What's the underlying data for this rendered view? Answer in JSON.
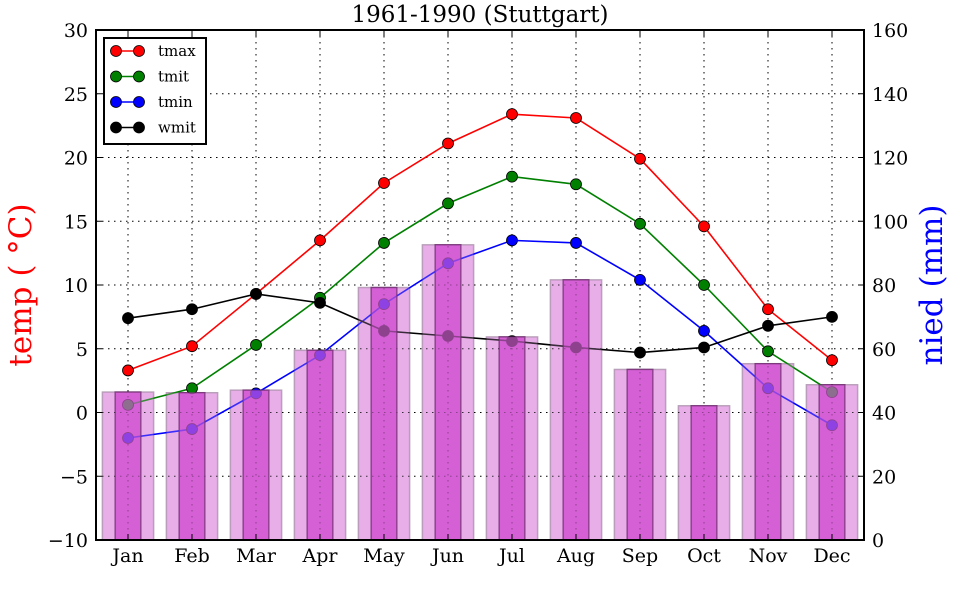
{
  "chart_data": {
    "type": "bar+line",
    "title": "1961-1990 (Stuttgart)",
    "xlabel": "",
    "ylabel_left": "temp ( °C)",
    "ylabel_left_color": "#ff0000",
    "ylabel_right": "nied (mm)",
    "ylabel_right_color": "#0000ff",
    "categories": [
      "Jan",
      "Feb",
      "Mar",
      "Apr",
      "May",
      "Jun",
      "Jul",
      "Aug",
      "Sep",
      "Oct",
      "Nov",
      "Dec"
    ],
    "ylim_left": [
      -10,
      30
    ],
    "yticks_left": [
      -10,
      -5,
      0,
      5,
      10,
      15,
      20,
      25,
      30
    ],
    "yticks_left_labels": [
      "−10",
      "−5",
      "0",
      "5",
      "10",
      "15",
      "20",
      "25",
      "30"
    ],
    "ylim_right": [
      0,
      160
    ],
    "yticks_right": [
      0,
      20,
      40,
      60,
      80,
      100,
      120,
      140,
      160
    ],
    "yticks_right_labels": [
      "0",
      "20",
      "40",
      "60",
      "80",
      "100",
      "120",
      "140",
      "160"
    ],
    "grid": true,
    "legend_position": "top-left",
    "bars": {
      "name": "nied",
      "axis": "right",
      "values": [
        46.4,
        46.2,
        47.0,
        59.5,
        79.2,
        92.6,
        63.7,
        81.6,
        53.5,
        42.1,
        55.3,
        48.7
      ],
      "wide_color": "#e9aee9",
      "narrow_color": "#d355d3"
    },
    "series": [
      {
        "name": "tmax",
        "axis": "left",
        "color": "#ff0000",
        "values": [
          3.3,
          5.2,
          9.3,
          13.5,
          18.0,
          21.1,
          23.4,
          23.1,
          19.9,
          14.6,
          8.1,
          4.1
        ]
      },
      {
        "name": "tmit",
        "axis": "left",
        "color": "#008000",
        "values": [
          0.6,
          1.9,
          5.3,
          9.0,
          13.3,
          16.4,
          18.5,
          17.9,
          14.8,
          10.0,
          4.8,
          1.6
        ]
      },
      {
        "name": "tmin",
        "axis": "left",
        "color": "#0000ff",
        "values": [
          -2.0,
          -1.3,
          1.5,
          4.5,
          8.5,
          11.7,
          13.5,
          13.3,
          10.4,
          6.4,
          1.9,
          -1.0
        ]
      },
      {
        "name": "wmit",
        "axis": "left",
        "color": "#000000",
        "values": [
          7.4,
          8.1,
          9.3,
          8.6,
          6.4,
          6.0,
          5.6,
          5.1,
          4.7,
          5.1,
          6.8,
          7.5
        ]
      }
    ]
  }
}
